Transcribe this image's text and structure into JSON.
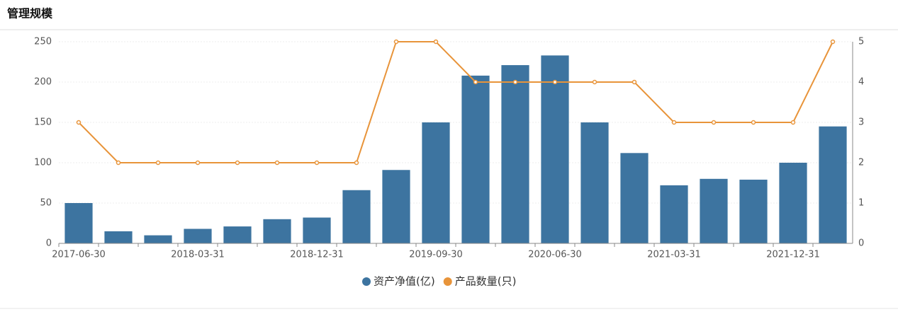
{
  "title": "管理规模",
  "chart_data": {
    "type": "bar-line",
    "categories": [
      "2017-06-30",
      null,
      null,
      "2018-03-31",
      null,
      null,
      "2018-12-31",
      null,
      null,
      "2019-09-30",
      null,
      null,
      "2020-06-30",
      null,
      null,
      "2021-03-31",
      null,
      null,
      "2021-12-31",
      null
    ],
    "series": [
      {
        "name": "资产净值(亿)",
        "color": "#3d74a0",
        "type": "bar",
        "values": [
          50,
          15,
          10,
          18,
          21,
          30,
          32,
          66,
          91,
          150,
          208,
          221,
          233,
          150,
          112,
          72,
          80,
          79,
          100,
          145
        ]
      },
      {
        "name": "产品数量(只)",
        "color": "#e8943a",
        "type": "line",
        "axis": "y2",
        "values": [
          3,
          2,
          2,
          2,
          2,
          2,
          2,
          2,
          5,
          5,
          4,
          4,
          4,
          4,
          4,
          3,
          3,
          3,
          3,
          5
        ]
      }
    ],
    "ylim": [
      0,
      250
    ],
    "yticks": [
      0,
      50,
      100,
      150,
      200,
      250
    ],
    "y2lim": [
      0,
      5
    ],
    "y2ticks": [
      0,
      1,
      2,
      3,
      4,
      5
    ],
    "grid": true,
    "legend": "bottom"
  }
}
